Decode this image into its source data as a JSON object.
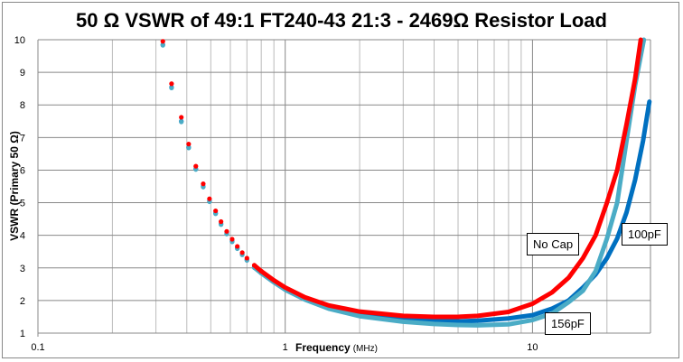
{
  "chart_data": {
    "type": "line",
    "title": "50 Ω VSWR of 49:1 FT240-43 21:3 - 2469Ω Resistor Load",
    "xlabel": "Frequency",
    "xlabel_unit": "(MHz)",
    "ylabel": "VSWR  (Primary 50 Ω)",
    "xscale": "log",
    "xlim": [
      0.1,
      30
    ],
    "ylim": [
      1,
      10
    ],
    "xticks": [
      "0.1",
      "1",
      "10"
    ],
    "yticks": [
      "1",
      "2",
      "3",
      "4",
      "5",
      "6",
      "7",
      "8",
      "9",
      "10"
    ],
    "grid": true,
    "series": [
      {
        "name": "100pF",
        "color": "#0070C0",
        "x": [
          0.32,
          0.347,
          0.38,
          0.407,
          0.435,
          0.466,
          0.494,
          0.523,
          0.55,
          0.58,
          0.61,
          0.64,
          0.67,
          0.7,
          0.75,
          0.8,
          0.9,
          1,
          1.2,
          1.5,
          2,
          3,
          4,
          5,
          6,
          8,
          10,
          12,
          14,
          16,
          18,
          20,
          22,
          24,
          26,
          28,
          29.7
        ],
        "y": [
          9.85,
          8.54,
          7.5,
          6.7,
          6.04,
          5.5,
          5.05,
          4.68,
          4.35,
          4.06,
          3.82,
          3.61,
          3.42,
          3.25,
          3.03,
          2.86,
          2.58,
          2.35,
          2.05,
          1.78,
          1.56,
          1.42,
          1.37,
          1.36,
          1.38,
          1.45,
          1.55,
          1.75,
          2.0,
          2.4,
          2.8,
          3.3,
          3.9,
          4.7,
          5.7,
          6.9,
          8.1
        ]
      },
      {
        "name": "156pF",
        "color": "#4BACC6",
        "x": [
          0.32,
          0.347,
          0.38,
          0.407,
          0.435,
          0.466,
          0.494,
          0.523,
          0.55,
          0.58,
          0.61,
          0.64,
          0.67,
          0.7,
          0.75,
          0.8,
          0.9,
          1,
          1.2,
          1.5,
          2,
          3,
          4,
          5,
          6,
          8,
          10,
          12,
          14,
          16,
          18,
          20,
          22,
          24,
          26,
          28.2
        ],
        "y": [
          9.83,
          8.52,
          7.48,
          6.68,
          6.02,
          5.48,
          5.03,
          4.66,
          4.33,
          4.04,
          3.8,
          3.59,
          3.4,
          3.23,
          3.01,
          2.84,
          2.56,
          2.33,
          2.03,
          1.75,
          1.52,
          1.35,
          1.28,
          1.25,
          1.24,
          1.27,
          1.4,
          1.6,
          1.95,
          2.3,
          2.9,
          3.9,
          5.0,
          6.9,
          8.6,
          10
        ]
      },
      {
        "name": "No Cap",
        "color": "#FF0000",
        "x": [
          0.32,
          0.347,
          0.38,
          0.407,
          0.435,
          0.466,
          0.494,
          0.523,
          0.55,
          0.58,
          0.61,
          0.64,
          0.67,
          0.7,
          0.75,
          0.8,
          0.9,
          1,
          1.2,
          1.5,
          2,
          3,
          4,
          5,
          6,
          8,
          10,
          12,
          14,
          16,
          18,
          20,
          22,
          24,
          26,
          27.4
        ],
        "y": [
          9.95,
          8.65,
          7.62,
          6.8,
          6.12,
          5.58,
          5.12,
          4.75,
          4.42,
          4.12,
          3.88,
          3.66,
          3.47,
          3.3,
          3.08,
          2.9,
          2.62,
          2.4,
          2.1,
          1.85,
          1.66,
          1.53,
          1.5,
          1.5,
          1.53,
          1.65,
          1.9,
          2.25,
          2.7,
          3.3,
          4.0,
          5.0,
          6.0,
          7.4,
          8.8,
          10
        ]
      }
    ],
    "annotations": [
      "No Cap",
      "100pF",
      "156pF"
    ]
  }
}
